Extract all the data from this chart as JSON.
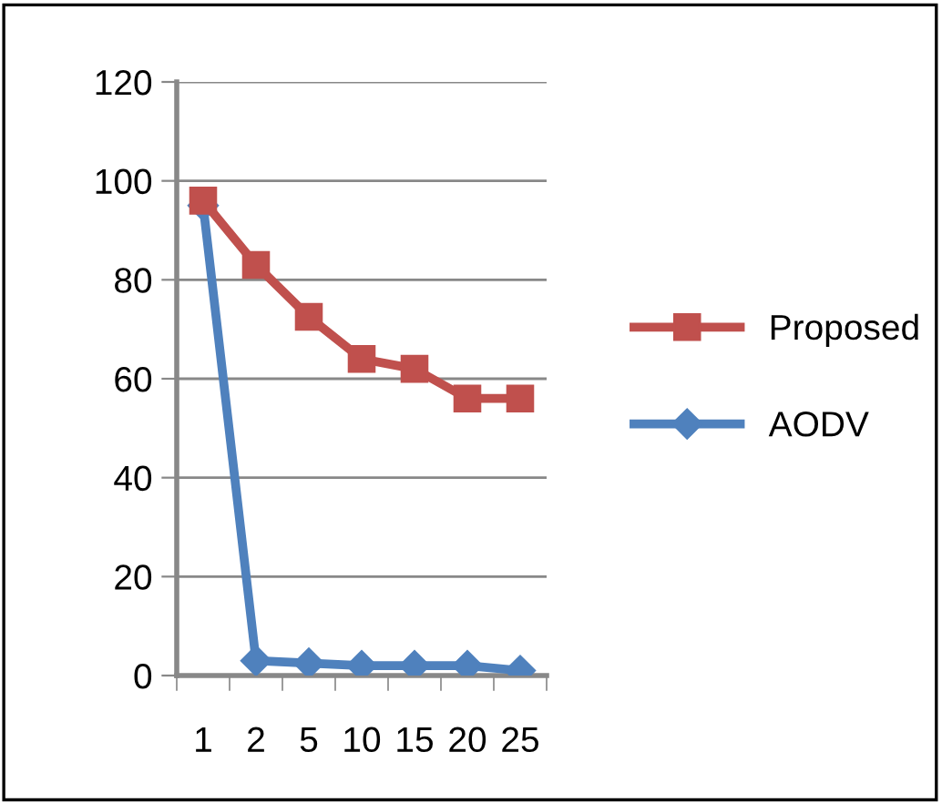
{
  "chart_data": {
    "type": "line",
    "categories": [
      "1",
      "2",
      "5",
      "10",
      "15",
      "20",
      "25"
    ],
    "series": [
      {
        "name": "Proposed",
        "color": "#c0504d",
        "marker": "square",
        "values": [
          96,
          83,
          72.5,
          64,
          62,
          56,
          56
        ]
      },
      {
        "name": "AODV",
        "color": "#4f81bd",
        "marker": "diamond",
        "values": [
          95,
          3,
          2.5,
          2,
          2,
          2,
          1
        ]
      }
    ],
    "ylim": [
      0,
      120
    ],
    "yticks": [
      0,
      20,
      40,
      60,
      80,
      100,
      120
    ],
    "grid": "y",
    "legend": "right",
    "line_style": "solid"
  }
}
